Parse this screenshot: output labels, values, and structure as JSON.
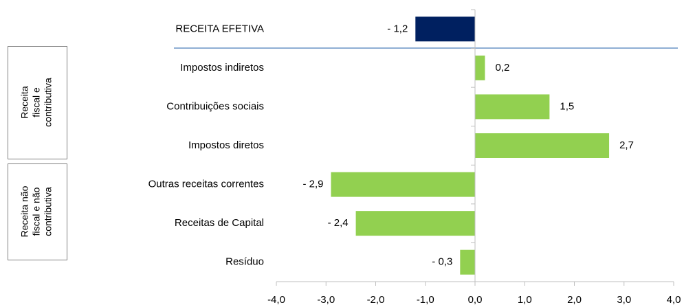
{
  "chart_data": {
    "type": "barh",
    "categories": [
      "RECEITA EFETIVA",
      "Impostos indiretos",
      "Contribuições sociais",
      "Impostos diretos",
      "Outras receitas correntes",
      "Receitas de Capital",
      "Resíduo"
    ],
    "values": [
      -1.2,
      0.2,
      1.5,
      2.7,
      -2.9,
      -2.4,
      -0.3
    ],
    "value_labels": [
      "- 1,2",
      "0,2",
      "1,5",
      "2,7",
      "- 2,9",
      "- 2,4",
      "- 0,3"
    ],
    "colors": [
      "#002060",
      "#92d050",
      "#92d050",
      "#92d050",
      "#92d050",
      "#92d050",
      "#92d050"
    ],
    "xlim": [
      -4,
      4
    ],
    "xticks": [
      {
        "value": -4,
        "label": "-4,0"
      },
      {
        "value": -3,
        "label": "-3,0"
      },
      {
        "value": -2,
        "label": "-2,0"
      },
      {
        "value": -1,
        "label": "-1,0"
      },
      {
        "value": 0,
        "label": "0,0"
      },
      {
        "value": 1,
        "label": "1,0"
      },
      {
        "value": 2,
        "label": "2,0"
      },
      {
        "value": 3,
        "label": "3,0"
      },
      {
        "value": 4,
        "label": "4,0"
      }
    ],
    "groups": [
      {
        "lines": [
          "Receita",
          "fiscal e",
          "contributiva"
        ]
      },
      {
        "lines": [
          "Receita não",
          "fiscal e não",
          "contributiva"
        ]
      }
    ]
  }
}
